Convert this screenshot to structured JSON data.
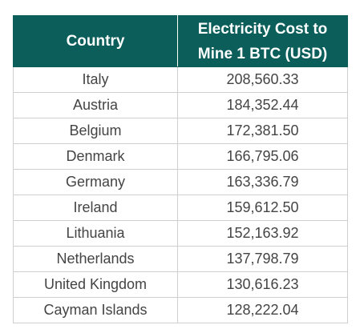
{
  "table": {
    "headers": [
      "Country",
      "Electricity Cost to Mine 1 BTC (USD)"
    ],
    "rows": [
      [
        "Italy",
        "208,560.33"
      ],
      [
        "Austria",
        "184,352.44"
      ],
      [
        "Belgium",
        "172,381.50"
      ],
      [
        "Denmark",
        "166,795.06"
      ],
      [
        "Germany",
        "163,336.79"
      ],
      [
        "Ireland",
        "159,612.50"
      ],
      [
        "Lithuania",
        "152,163.92"
      ],
      [
        "Netherlands",
        "137,798.79"
      ],
      [
        "United Kingdom",
        "130,616.23"
      ],
      [
        "Cayman Islands",
        "128,222.04"
      ]
    ]
  },
  "colors": {
    "header_bg": "#0b5e5a",
    "header_text": "#ffffff",
    "cell_text": "#444444",
    "grid": "#cfcfcf"
  }
}
